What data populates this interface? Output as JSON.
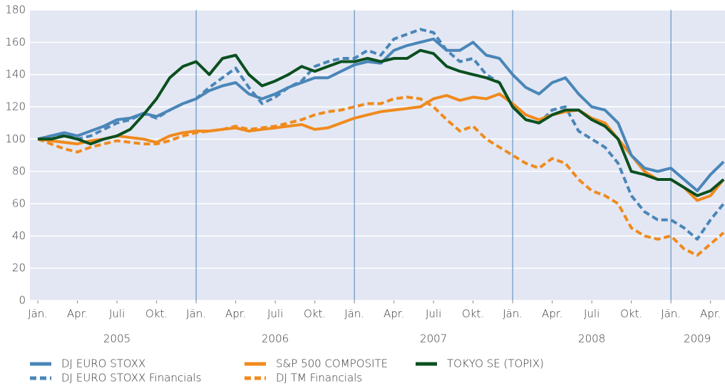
{
  "chart_data": {
    "type": "line",
    "x": [
      0,
      1,
      2,
      3,
      4,
      5,
      6,
      7,
      8,
      9,
      10,
      11,
      12,
      13,
      14,
      15,
      16,
      17,
      18,
      19,
      20,
      21,
      22,
      23,
      24,
      25,
      26,
      27,
      28,
      29,
      30,
      31,
      32,
      33,
      34,
      35,
      36,
      37,
      38,
      39,
      40,
      41,
      42,
      43,
      44,
      45,
      46,
      47,
      48,
      49,
      50,
      51,
      52
    ],
    "xlim": [
      -0.6,
      52.1
    ],
    "xticks": [
      {
        "value": 0,
        "label": "Jän."
      },
      {
        "value": 3,
        "label": "Apr."
      },
      {
        "value": 6,
        "label": "Juli"
      },
      {
        "value": 9,
        "label": "Okt."
      },
      {
        "value": 12,
        "label": "Jän."
      },
      {
        "value": 15,
        "label": "Apr."
      },
      {
        "value": 18,
        "label": "Juli"
      },
      {
        "value": 21,
        "label": "Okt."
      },
      {
        "value": 24,
        "label": "Jän."
      },
      {
        "value": 27,
        "label": "Apr."
      },
      {
        "value": 30,
        "label": "Juli"
      },
      {
        "value": 33,
        "label": "Okt."
      },
      {
        "value": 36,
        "label": "Jän."
      },
      {
        "value": 39,
        "label": "Apr."
      },
      {
        "value": 42,
        "label": "Juli"
      },
      {
        "value": 45,
        "label": "Okt."
      },
      {
        "value": 48,
        "label": "Jän."
      },
      {
        "value": 51,
        "label": "Apr."
      }
    ],
    "year_labels": [
      {
        "value": 6,
        "label": "2005"
      },
      {
        "value": 18,
        "label": "2006"
      },
      {
        "value": 30,
        "label": "2007"
      },
      {
        "value": 42,
        "label": "2008"
      },
      {
        "value": 50,
        "label": "2009"
      }
    ],
    "x_separators": [
      12,
      24,
      36,
      48
    ],
    "ylim": [
      0,
      180
    ],
    "yticks": [
      0,
      20,
      40,
      60,
      80,
      100,
      120,
      140,
      160,
      180
    ],
    "grid": true,
    "series": [
      {
        "name": "DJ EURO STOXX",
        "color": "#4a86b8",
        "dash": false,
        "values": [
          100,
          102,
          104,
          102,
          105,
          108,
          112,
          113,
          116,
          114,
          118,
          122,
          125,
          130,
          133,
          135,
          128,
          125,
          128,
          132,
          135,
          138,
          138,
          142,
          146,
          148,
          147,
          155,
          158,
          160,
          162,
          155,
          155,
          160,
          152,
          150,
          140,
          132,
          128,
          135,
          138,
          128,
          120,
          118,
          110,
          90,
          82,
          80,
          82,
          75,
          68,
          78,
          86
        ]
      },
      {
        "name": "S&P 500 COMPOSITE",
        "color": "#f08a1d",
        "dash": false,
        "values": [
          100,
          99,
          98,
          97,
          99,
          100,
          102,
          101,
          100,
          98,
          102,
          104,
          105,
          105,
          106,
          107,
          105,
          106,
          107,
          108,
          109,
          106,
          107,
          110,
          113,
          115,
          117,
          118,
          119,
          120,
          125,
          127,
          124,
          126,
          125,
          128,
          122,
          115,
          112,
          115,
          117,
          118,
          113,
          110,
          100,
          90,
          80,
          75,
          75,
          70,
          62,
          65,
          75
        ]
      },
      {
        "name": "TOKYO SE (TOPIX)",
        "color": "#0b5020",
        "dash": false,
        "values": [
          100,
          100,
          102,
          100,
          97,
          100,
          102,
          106,
          115,
          125,
          138,
          145,
          148,
          140,
          150,
          152,
          140,
          133,
          136,
          140,
          145,
          142,
          145,
          148,
          148,
          150,
          148,
          150,
          150,
          155,
          153,
          145,
          142,
          140,
          138,
          135,
          120,
          112,
          110,
          115,
          118,
          118,
          112,
          108,
          100,
          80,
          78,
          75,
          75,
          70,
          65,
          68,
          75
        ]
      },
      {
        "name": "DJ EURO STOXX Financials",
        "color": "#4a86b8",
        "dash": true,
        "values": [
          100,
          102,
          103,
          100,
          102,
          106,
          110,
          112,
          116,
          113,
          118,
          122,
          125,
          132,
          138,
          144,
          132,
          122,
          126,
          132,
          136,
          145,
          148,
          150,
          150,
          155,
          152,
          162,
          165,
          168,
          166,
          155,
          148,
          150,
          140,
          135,
          120,
          112,
          110,
          118,
          120,
          105,
          100,
          95,
          85,
          65,
          55,
          50,
          50,
          45,
          38,
          50,
          60
        ]
      },
      {
        "name": "DJ TM Financials",
        "color": "#f08a1d",
        "dash": true,
        "values": [
          100,
          97,
          94,
          92,
          95,
          97,
          99,
          98,
          97,
          97,
          99,
          102,
          104,
          105,
          106,
          108,
          106,
          107,
          108,
          110,
          112,
          115,
          117,
          118,
          120,
          122,
          122,
          125,
          126,
          125,
          120,
          112,
          105,
          108,
          100,
          95,
          90,
          85,
          82,
          88,
          85,
          75,
          68,
          65,
          60,
          45,
          40,
          38,
          40,
          32,
          28,
          35,
          42
        ]
      }
    ]
  }
}
